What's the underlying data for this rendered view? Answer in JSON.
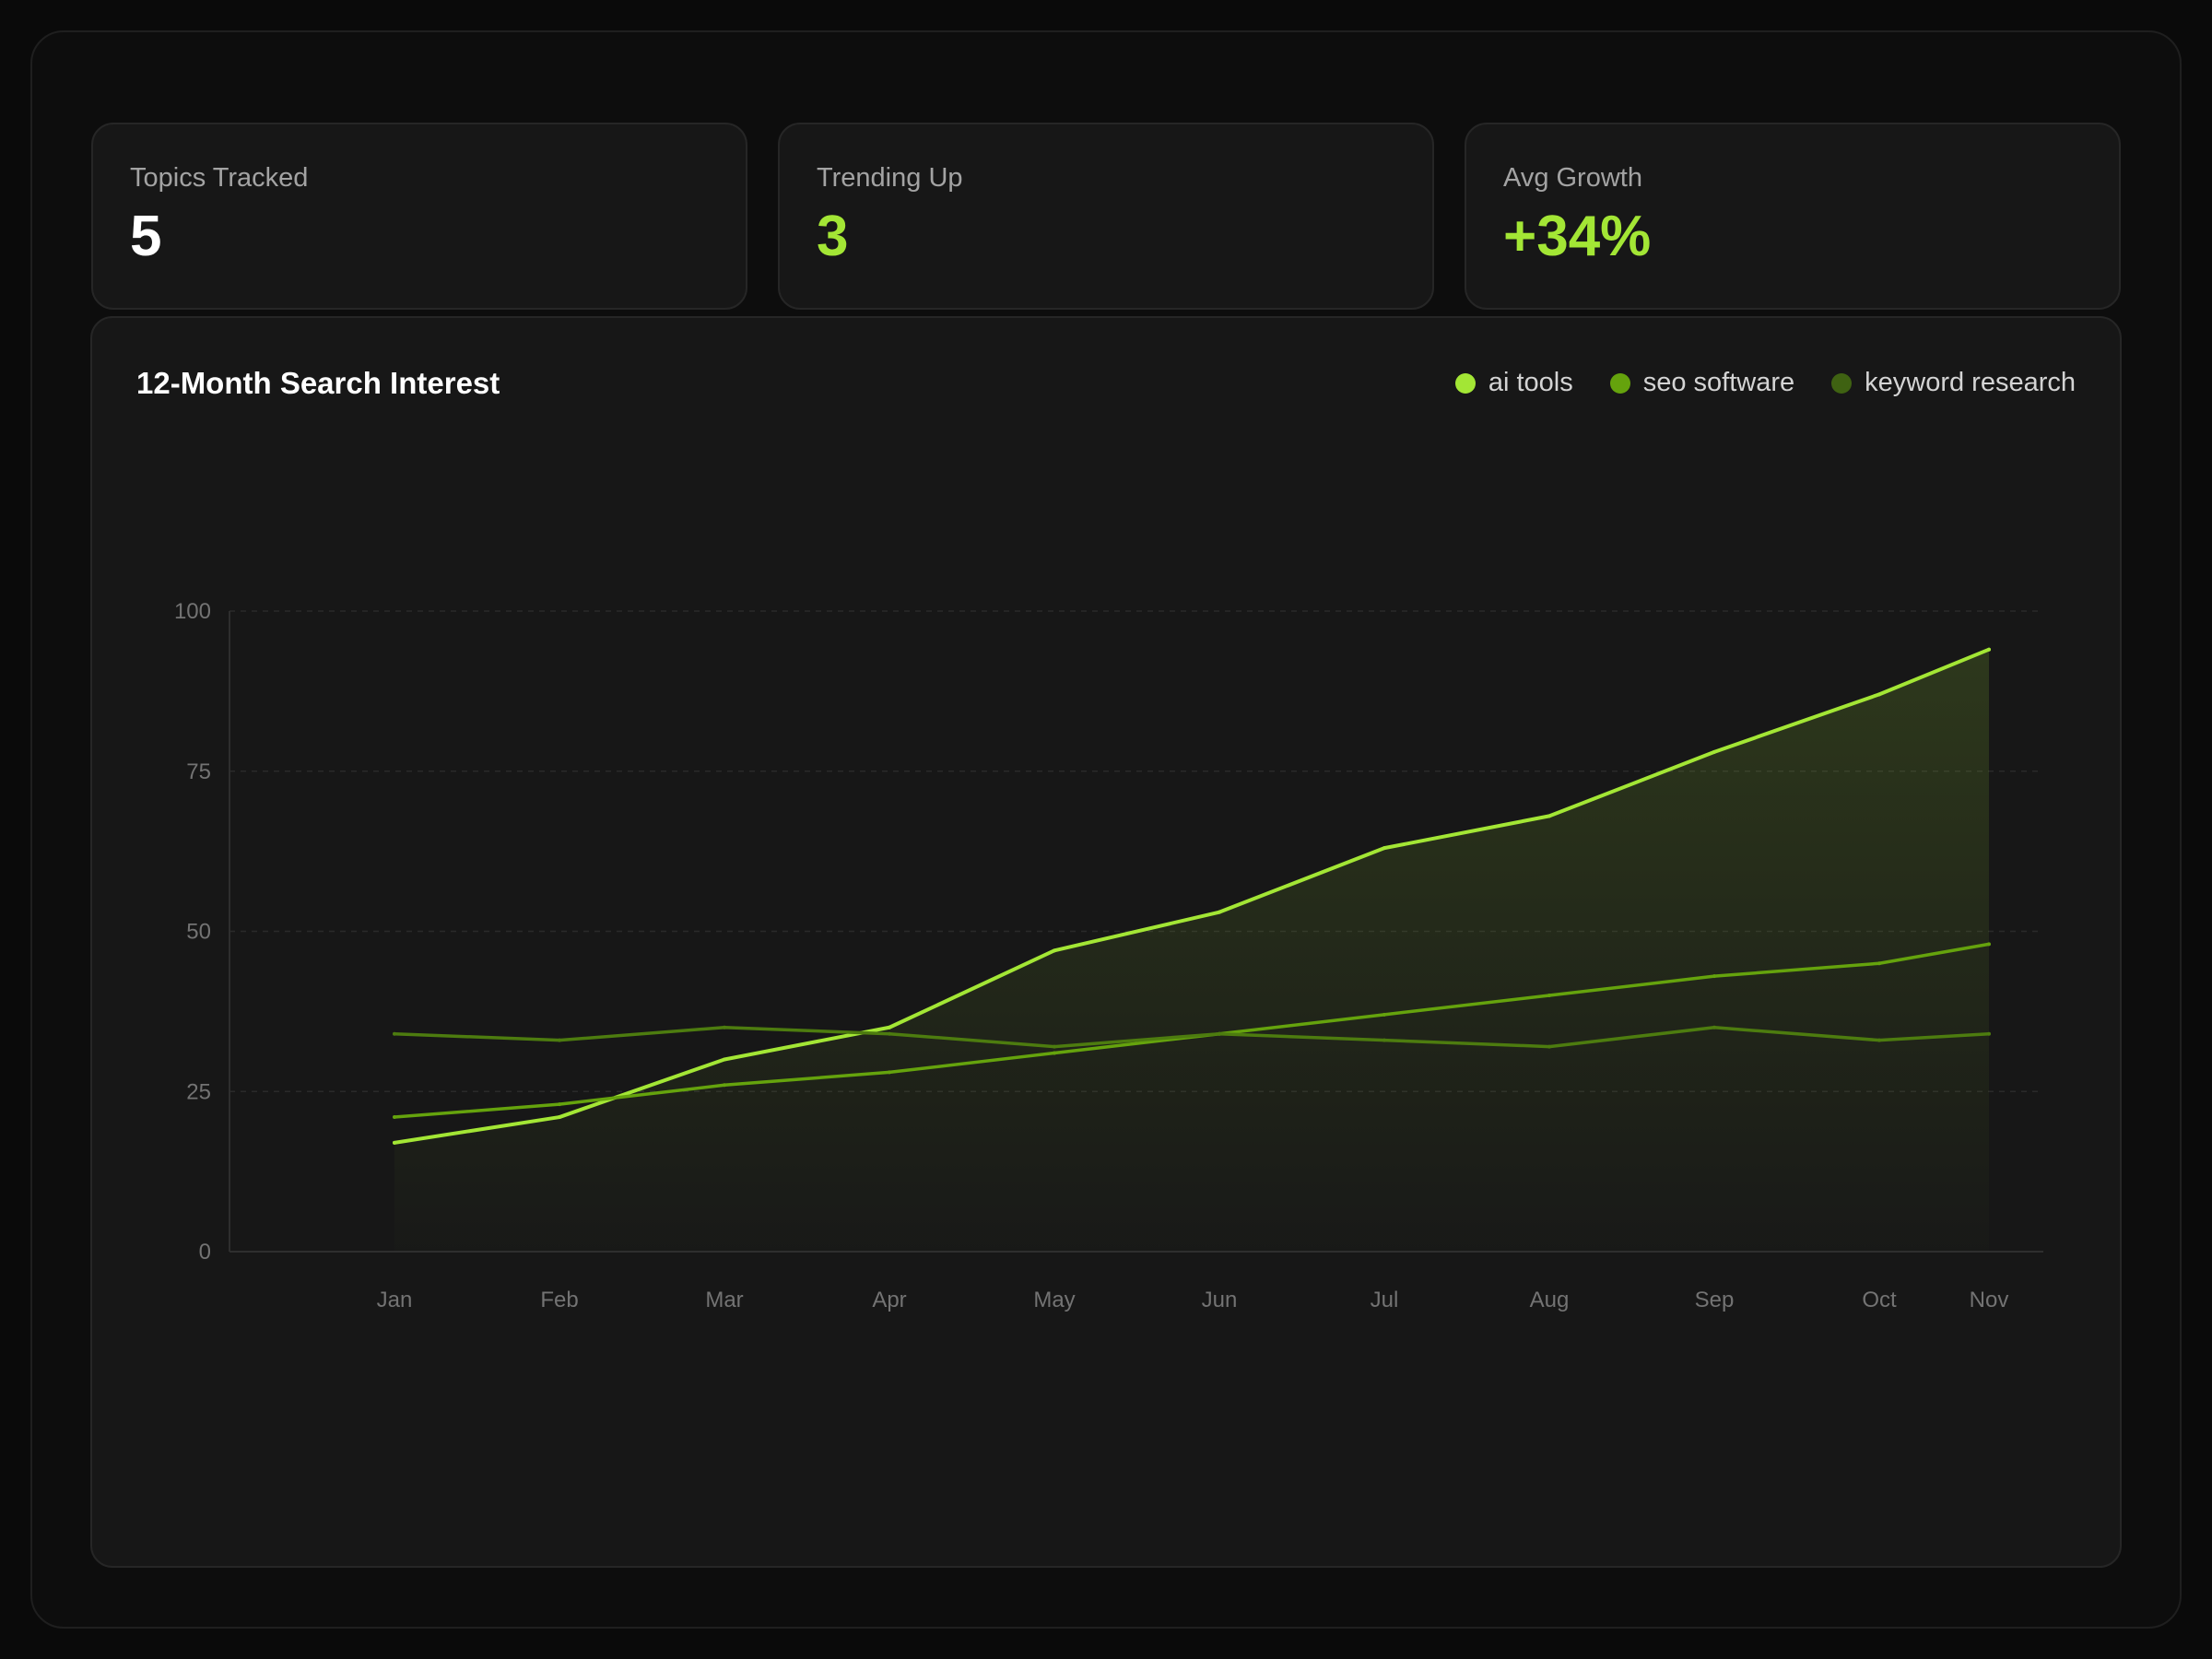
{
  "stats": [
    {
      "label": "Topics Tracked",
      "value": "5",
      "color": "#ffffff"
    },
    {
      "label": "Trending Up",
      "value": "3",
      "color": "#a3e635"
    },
    {
      "label": "Avg Growth",
      "value": "+34%",
      "color": "#a3e635"
    }
  ],
  "chart_panel": {
    "title": "12-Month Search Interest"
  },
  "legend": [
    {
      "label": "ai tools",
      "color": "#a3e635"
    },
    {
      "label": "seo software",
      "color": "#65a30d"
    },
    {
      "label": "keyword research",
      "color": "#3f6212"
    }
  ],
  "chart_data": {
    "type": "line",
    "title": "12-Month Search Interest",
    "xlabel": "",
    "ylabel": "",
    "ylim": [
      0,
      100
    ],
    "yticks": [
      0,
      25,
      50,
      75,
      100
    ],
    "categories": [
      "Jan",
      "Feb",
      "Mar",
      "Apr",
      "May",
      "Jun",
      "Jul",
      "Aug",
      "Sep",
      "Oct",
      "Nov"
    ],
    "grid": true,
    "legend_position": "top-right",
    "series": [
      {
        "name": "ai tools",
        "color": "#a3e635",
        "area": true,
        "values": [
          17,
          21,
          30,
          35,
          47,
          53,
          63,
          68,
          78,
          87,
          94
        ]
      },
      {
        "name": "seo software",
        "color": "#65a30d",
        "area": false,
        "values": [
          21,
          23,
          26,
          28,
          31,
          34,
          37,
          40,
          43,
          45,
          48
        ]
      },
      {
        "name": "keyword research",
        "color": "#4d7c0f",
        "area": false,
        "values": [
          34,
          33,
          35,
          34,
          32,
          34,
          33,
          32,
          35,
          33,
          34
        ]
      }
    ]
  }
}
